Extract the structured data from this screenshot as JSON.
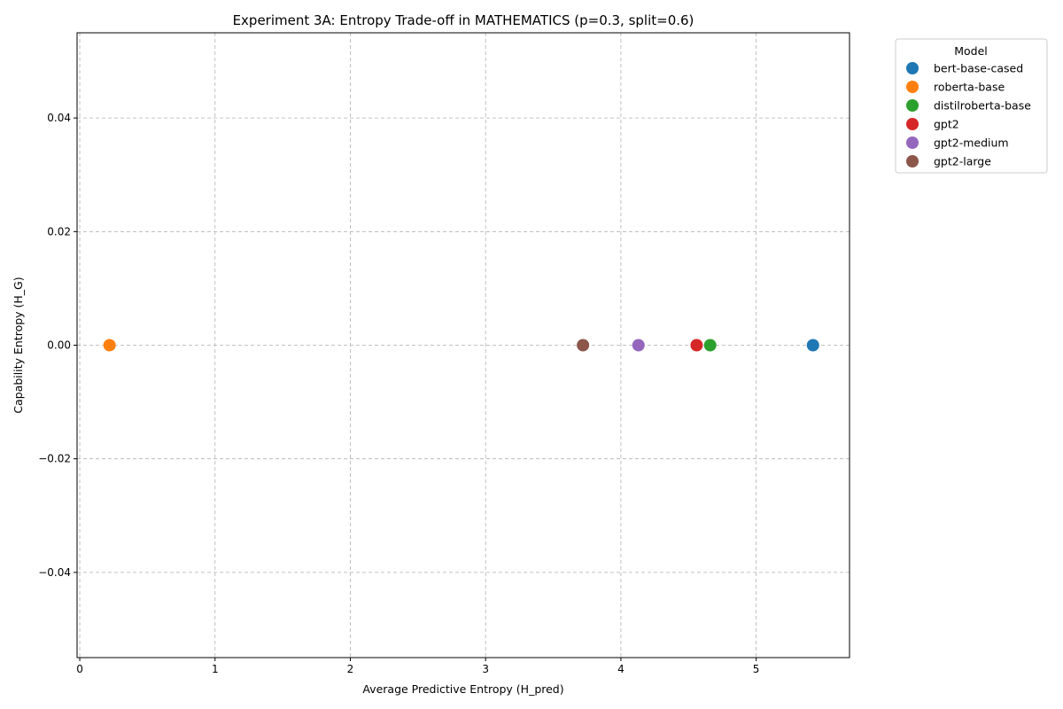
{
  "chart_data": {
    "type": "scatter",
    "title": "Experiment 3A: Entropy Trade-off in MATHEMATICS (p=0.3, split=0.6)",
    "xlabel": "Average Predictive Entropy (H_pred)",
    "ylabel": "Capability Entropy (H_G)",
    "xlim": [
      -0.02,
      5.69
    ],
    "ylim": [
      -0.055,
      0.055
    ],
    "xticks": [
      0,
      1,
      2,
      3,
      4,
      5
    ],
    "xtick_labels": [
      "0",
      "1",
      "2",
      "3",
      "4",
      "5"
    ],
    "yticks": [
      -0.04,
      -0.02,
      0.0,
      0.02,
      0.04
    ],
    "ytick_labels": [
      "−0.04",
      "−0.02",
      "0.00",
      "0.02",
      "0.04"
    ],
    "grid": true,
    "legend": {
      "title": "Model",
      "placement": "outside-top-right"
    },
    "series": [
      {
        "name": "bert-base-cased",
        "color": "#1f77b4",
        "x": [
          5.42
        ],
        "y": [
          0.0
        ]
      },
      {
        "name": "roberta-base",
        "color": "#ff7f0e",
        "x": [
          0.22
        ],
        "y": [
          0.0
        ]
      },
      {
        "name": "distilroberta-base",
        "color": "#2ca02c",
        "x": [
          4.66
        ],
        "y": [
          0.0
        ]
      },
      {
        "name": "gpt2",
        "color": "#d62728",
        "x": [
          4.56
        ],
        "y": [
          0.0
        ]
      },
      {
        "name": "gpt2-medium",
        "color": "#9467bd",
        "x": [
          4.13
        ],
        "y": [
          0.0
        ]
      },
      {
        "name": "gpt2-large",
        "color": "#8c564b",
        "x": [
          3.72
        ],
        "y": [
          0.0
        ]
      }
    ]
  }
}
